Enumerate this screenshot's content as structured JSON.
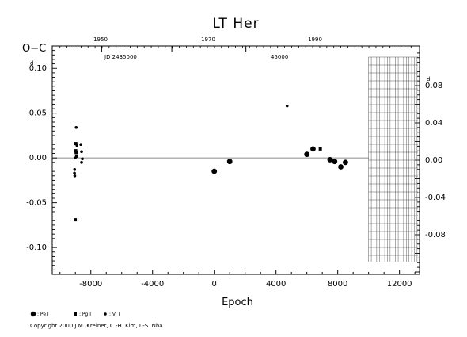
{
  "chart_data": {
    "type": "scatter",
    "title": "LT Her",
    "xlabel": "Epoch",
    "ylabel": "O−C",
    "xlim": [
      -10500,
      13300
    ],
    "ylim": [
      -0.13,
      0.125
    ],
    "left_y_ticks": [
      "-0.10",
      "-0.05",
      "0.00",
      "0.05",
      "0.10"
    ],
    "left_y_values": [
      -0.1,
      -0.05,
      0.0,
      0.05,
      0.1
    ],
    "top_left_tick_label": "d",
    "x_ticks": [
      "-8000",
      "-4000",
      "0",
      "4000",
      "8000",
      "12000"
    ],
    "x_values": [
      -8000,
      -4000,
      0,
      4000,
      8000,
      12000
    ],
    "top_axis_years": [
      "1950",
      "1970",
      "1990"
    ],
    "jd_labels": [
      "JD 2435000",
      "45000"
    ],
    "right_y_ticks": [
      "-0.08",
      "-0.04",
      "0.00",
      "0.04",
      "0.08"
    ],
    "right_y_values": [
      -0.08,
      -0.04,
      0.0,
      0.04,
      0.08
    ],
    "top_right_tick_label": "d",
    "series": [
      {
        "name": ": Pe I",
        "marker": "circle-large",
        "points": [
          [
            0,
            -0.015
          ],
          [
            1000,
            -0.004
          ],
          [
            6000,
            0.004
          ],
          [
            6400,
            0.01
          ],
          [
            7500,
            -0.002
          ],
          [
            7800,
            -0.004
          ],
          [
            8200,
            -0.01
          ],
          [
            8500,
            -0.005
          ]
        ]
      },
      {
        "name": ": Pg I",
        "marker": "square",
        "points": [
          [
            -8970,
            0.016
          ],
          [
            -8980,
            0.008
          ],
          [
            -8950,
            0.006
          ],
          [
            -8920,
            0.002
          ],
          [
            -9010,
            -0.069
          ],
          [
            6870,
            0.01
          ]
        ]
      },
      {
        "name": ": Vi I",
        "marker": "dot",
        "points": [
          [
            -8950,
            0.034
          ],
          [
            -8900,
            0.014
          ],
          [
            -8650,
            0.015
          ],
          [
            -8600,
            0.007
          ],
          [
            -8550,
            -0.001
          ],
          [
            -8600,
            -0.005
          ],
          [
            -9010,
            0.0
          ],
          [
            -9050,
            -0.013
          ],
          [
            -9060,
            -0.017
          ],
          [
            -9040,
            -0.02
          ],
          [
            4720,
            0.058
          ]
        ]
      }
    ],
    "hatched_region_x": [
      10000,
      13300
    ]
  },
  "copyright": "Copyright 2000 J.M. Kreiner, C.-H. Kim, I.-S. Nha"
}
